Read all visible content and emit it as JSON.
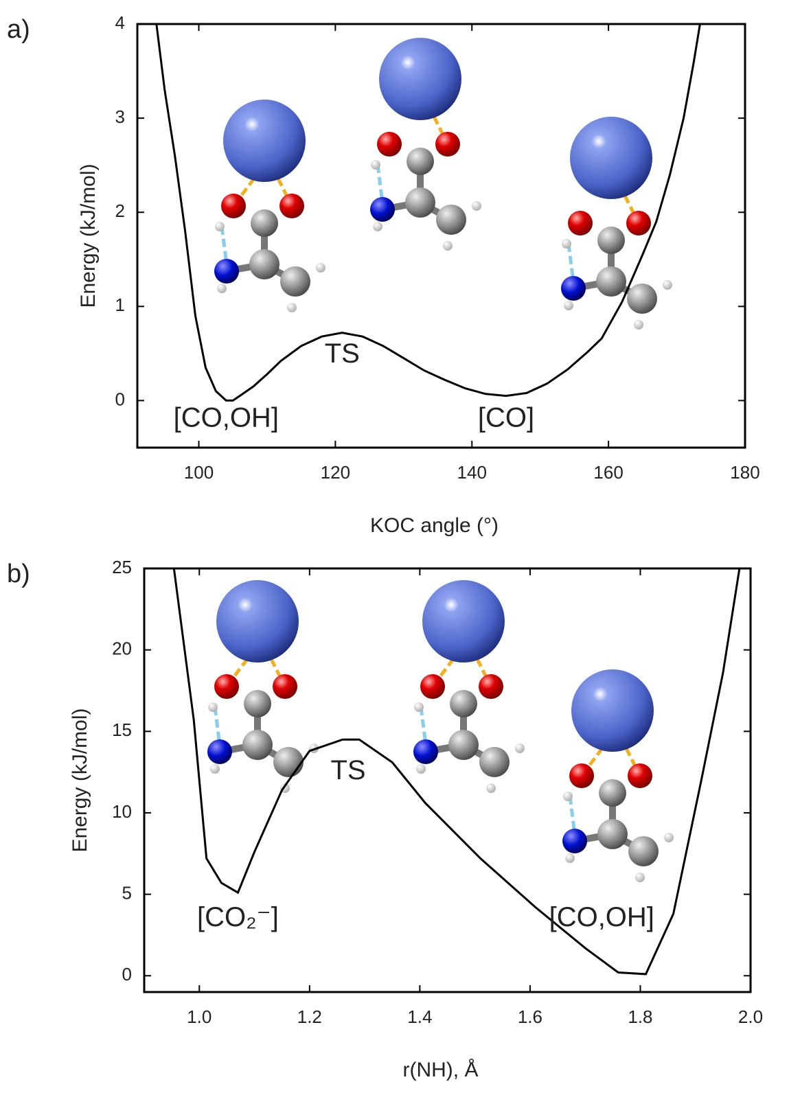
{
  "chart_data": [
    {
      "type": "line",
      "panel_label": "a)",
      "xlabel": "KOC angle (°)",
      "ylabel": "Energy (kJ/mol)",
      "xlim": [
        91,
        180
      ],
      "ylim": [
        -0.5,
        4
      ],
      "xticks": [
        100,
        120,
        140,
        160,
        180
      ],
      "yticks": [
        0,
        1,
        2,
        3,
        4
      ],
      "annotations": [
        {
          "text": "[CO,OH]",
          "x": 104,
          "y": -0.2
        },
        {
          "text": "TS",
          "x": 121,
          "y": 0.48
        },
        {
          "text": "[CO]",
          "x": 145,
          "y": -0.2
        }
      ],
      "series": [
        {
          "color": "#000000",
          "x": [
            93.8,
            95,
            96.5,
            98,
            99.5,
            101,
            102.5,
            104,
            105,
            106,
            108,
            110,
            112,
            115,
            118,
            121,
            124,
            127,
            130,
            133,
            136,
            139,
            142,
            145,
            148,
            151,
            154,
            157,
            159,
            162,
            165,
            167,
            169,
            171,
            172.5,
            173.4
          ],
          "values": [
            4.0,
            3.3,
            2.6,
            1.8,
            0.9,
            0.35,
            0.1,
            0.0,
            0.0,
            0.05,
            0.15,
            0.28,
            0.42,
            0.58,
            0.68,
            0.72,
            0.68,
            0.58,
            0.45,
            0.32,
            0.22,
            0.13,
            0.07,
            0.05,
            0.08,
            0.18,
            0.33,
            0.52,
            0.66,
            1.05,
            1.55,
            1.9,
            2.4,
            3.0,
            3.6,
            4.0
          ]
        }
      ]
    },
    {
      "type": "line",
      "panel_label": "b)",
      "xlabel": "r(NH),  Å",
      "ylabel": "Energy (kJ/mol)",
      "xlim": [
        0.9,
        2.0
      ],
      "ylim": [
        -1,
        25
      ],
      "xticks": [
        {
          "value": 1,
          "label": "1.0"
        },
        1.2,
        1.4,
        1.6,
        1.8,
        {
          "value": 2,
          "label": "2.0"
        }
      ],
      "yticks": [
        0,
        5,
        10,
        15,
        20,
        25
      ],
      "annotations": [
        {
          "text": "[CO₂⁻]",
          "x": 1.07,
          "y": 3.5
        },
        {
          "text": "TS",
          "x": 1.27,
          "y": 12.5
        },
        {
          "text": "[CO,OH]",
          "x": 1.73,
          "y": 3.5
        }
      ],
      "series": [
        {
          "color": "#000000",
          "x": [
            0.954,
            0.99,
            1.013,
            1.04,
            1.07,
            1.1,
            1.15,
            1.2,
            1.26,
            1.29,
            1.35,
            1.41,
            1.51,
            1.61,
            1.7,
            1.76,
            1.81,
            1.86,
            1.91,
            1.95,
            1.98
          ],
          "values": [
            25,
            15.7,
            7.2,
            5.7,
            5.1,
            7.6,
            11.4,
            13.8,
            14.5,
            14.5,
            13.1,
            10.6,
            7.2,
            4.2,
            1.7,
            0.2,
            0.1,
            3.8,
            11.9,
            18.6,
            25
          ]
        }
      ]
    }
  ]
}
